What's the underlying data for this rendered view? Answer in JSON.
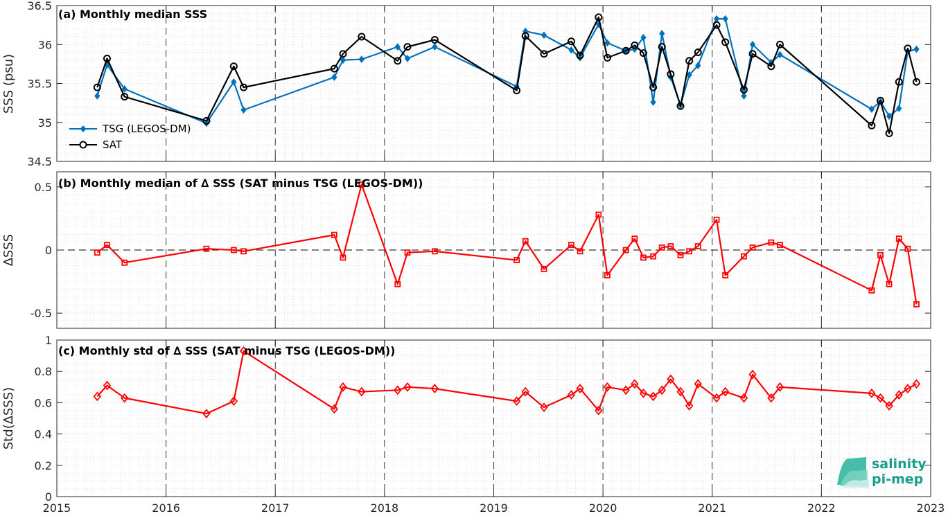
{
  "x_axis": {
    "xlim": [
      2015,
      2023
    ],
    "ticks": [
      2015,
      2016,
      2017,
      2018,
      2019,
      2020,
      2021,
      2022,
      2023
    ],
    "tick_labels": [
      "2015",
      "2016",
      "2017",
      "2018",
      "2019",
      "2020",
      "2021",
      "2022",
      "2023"
    ]
  },
  "logo": {
    "line1": "salinity",
    "line2": "pi-mep"
  },
  "colors": {
    "tsg": "#0072BD",
    "sat": "#000000",
    "delta": "#ff0000",
    "zero_line": "#000000"
  },
  "chart_data": [
    {
      "type": "line",
      "title": "(a) Monthly median SSS",
      "ylabel": "SSS (psu)",
      "ylim": [
        34.5,
        36.5
      ],
      "yticks": [
        34.5,
        35,
        35.5,
        36,
        36.5
      ],
      "ytick_labels": [
        "34.5",
        "35",
        "35.5",
        "36",
        "36.5"
      ],
      "grid": "minor dotted, major dashed vertical at years",
      "legend": {
        "placement": "lower-left",
        "entries": [
          "TSG (LEGOS-DM)",
          "SAT"
        ]
      },
      "series": [
        {
          "name": "TSG (LEGOS-DM)",
          "marker": "diamond-filled",
          "color": "#0072BD",
          "x": [
            2015.37,
            2015.46,
            2015.62,
            2016.37,
            2016.62,
            2016.71,
            2017.54,
            2017.62,
            2017.79,
            2018.12,
            2018.21,
            2018.46,
            2019.21,
            2019.29,
            2019.46,
            2019.71,
            2019.79,
            2019.96,
            2020.04,
            2020.21,
            2020.29,
            2020.37,
            2020.46,
            2020.54,
            2020.62,
            2020.71,
            2020.79,
            2020.87,
            2021.04,
            2021.12,
            2021.29,
            2021.37,
            2021.54,
            2021.62,
            2022.46,
            2022.54,
            2022.62,
            2022.71,
            2022.79,
            2022.87
          ],
          "y": [
            35.34,
            35.74,
            35.43,
            34.99,
            35.52,
            35.16,
            35.58,
            35.8,
            35.81,
            35.97,
            35.82,
            35.97,
            35.46,
            36.17,
            36.12,
            35.93,
            35.83,
            36.26,
            36.02,
            35.92,
            35.94,
            36.09,
            35.26,
            36.14,
            35.58,
            35.22,
            35.61,
            35.73,
            36.33,
            36.33,
            35.34,
            36.0,
            35.77,
            35.87,
            35.17,
            35.27,
            35.08,
            35.18,
            35.91,
            35.94
          ]
        },
        {
          "name": "SAT",
          "marker": "circle-open",
          "color": "#000000",
          "x": [
            2015.37,
            2015.46,
            2015.62,
            2016.37,
            2016.62,
            2016.71,
            2017.54,
            2017.62,
            2017.79,
            2018.12,
            2018.21,
            2018.46,
            2019.21,
            2019.29,
            2019.46,
            2019.71,
            2019.79,
            2019.96,
            2020.04,
            2020.21,
            2020.29,
            2020.37,
            2020.46,
            2020.54,
            2020.62,
            2020.71,
            2020.79,
            2020.87,
            2021.04,
            2021.12,
            2021.29,
            2021.37,
            2021.54,
            2021.62,
            2022.46,
            2022.54,
            2022.62,
            2022.71,
            2022.79,
            2022.87
          ],
          "y": [
            35.45,
            35.82,
            35.33,
            35.02,
            35.72,
            35.45,
            35.69,
            35.88,
            36.1,
            35.79,
            35.97,
            36.06,
            35.41,
            36.11,
            35.88,
            36.04,
            35.86,
            36.35,
            35.83,
            35.92,
            35.99,
            35.89,
            35.45,
            35.97,
            35.62,
            35.21,
            35.79,
            35.9,
            36.25,
            36.03,
            35.42,
            35.88,
            35.72,
            36.0,
            34.96,
            35.28,
            34.86,
            35.52,
            35.95,
            35.52
          ]
        }
      ]
    },
    {
      "type": "line",
      "title": "(b) Monthly median of ∆ SSS (SAT minus TSG (LEGOS-DM))",
      "ylabel": "∆SSS",
      "ylim": [
        -0.62,
        0.62
      ],
      "yticks": [
        -0.5,
        0,
        0.5
      ],
      "ytick_labels": [
        "-0.5",
        "0",
        "0.5"
      ],
      "zero_line": "dashed",
      "series": [
        {
          "marker": "square-open",
          "color": "#ff0000",
          "x": [
            2015.37,
            2015.46,
            2015.62,
            2016.37,
            2016.62,
            2016.71,
            2017.54,
            2017.62,
            2017.79,
            2018.12,
            2018.21,
            2018.46,
            2019.21,
            2019.29,
            2019.46,
            2019.71,
            2019.79,
            2019.96,
            2020.04,
            2020.21,
            2020.29,
            2020.37,
            2020.46,
            2020.54,
            2020.62,
            2020.71,
            2020.79,
            2020.87,
            2021.04,
            2021.12,
            2021.29,
            2021.37,
            2021.54,
            2021.62,
            2022.46,
            2022.54,
            2022.62,
            2022.71,
            2022.79,
            2022.87
          ],
          "y": [
            -0.02,
            0.04,
            -0.1,
            0.01,
            0.0,
            -0.01,
            0.12,
            -0.06,
            0.52,
            -0.27,
            -0.02,
            -0.01,
            -0.08,
            0.07,
            -0.15,
            0.04,
            -0.01,
            0.28,
            -0.2,
            0.0,
            0.09,
            -0.06,
            -0.05,
            0.02,
            0.03,
            -0.04,
            -0.01,
            0.03,
            0.24,
            -0.2,
            -0.05,
            0.02,
            0.06,
            0.04,
            -0.32,
            -0.04,
            -0.27,
            0.09,
            0.01,
            -0.43
          ]
        }
      ]
    },
    {
      "type": "line",
      "title": "(c) Monthly std of ∆ SSS (SAT minus TSG (LEGOS-DM))",
      "ylabel": "Std(∆SSS)",
      "ylim": [
        0,
        1
      ],
      "yticks": [
        0,
        0.2,
        0.4,
        0.6,
        0.8,
        1
      ],
      "ytick_labels": [
        "0",
        "0.2",
        "0.4",
        "0.6",
        "0.8",
        "1"
      ],
      "series": [
        {
          "marker": "diamond-open",
          "color": "#ff0000",
          "x": [
            2015.37,
            2015.46,
            2015.62,
            2016.37,
            2016.62,
            2016.71,
            2017.54,
            2017.62,
            2017.79,
            2018.12,
            2018.21,
            2018.46,
            2019.21,
            2019.29,
            2019.46,
            2019.71,
            2019.79,
            2019.96,
            2020.04,
            2020.21,
            2020.29,
            2020.37,
            2020.46,
            2020.54,
            2020.62,
            2020.71,
            2020.79,
            2020.87,
            2021.04,
            2021.12,
            2021.29,
            2021.37,
            2021.54,
            2021.62,
            2022.46,
            2022.54,
            2022.62,
            2022.71,
            2022.79,
            2022.87
          ],
          "y": [
            0.64,
            0.71,
            0.63,
            0.53,
            0.61,
            0.93,
            0.56,
            0.7,
            0.67,
            0.68,
            0.7,
            0.69,
            0.61,
            0.67,
            0.57,
            0.65,
            0.69,
            0.55,
            0.7,
            0.68,
            0.72,
            0.66,
            0.64,
            0.68,
            0.75,
            0.67,
            0.58,
            0.72,
            0.63,
            0.67,
            0.63,
            0.78,
            0.63,
            0.7,
            0.66,
            0.63,
            0.58,
            0.65,
            0.69,
            0.72
          ]
        }
      ]
    }
  ]
}
